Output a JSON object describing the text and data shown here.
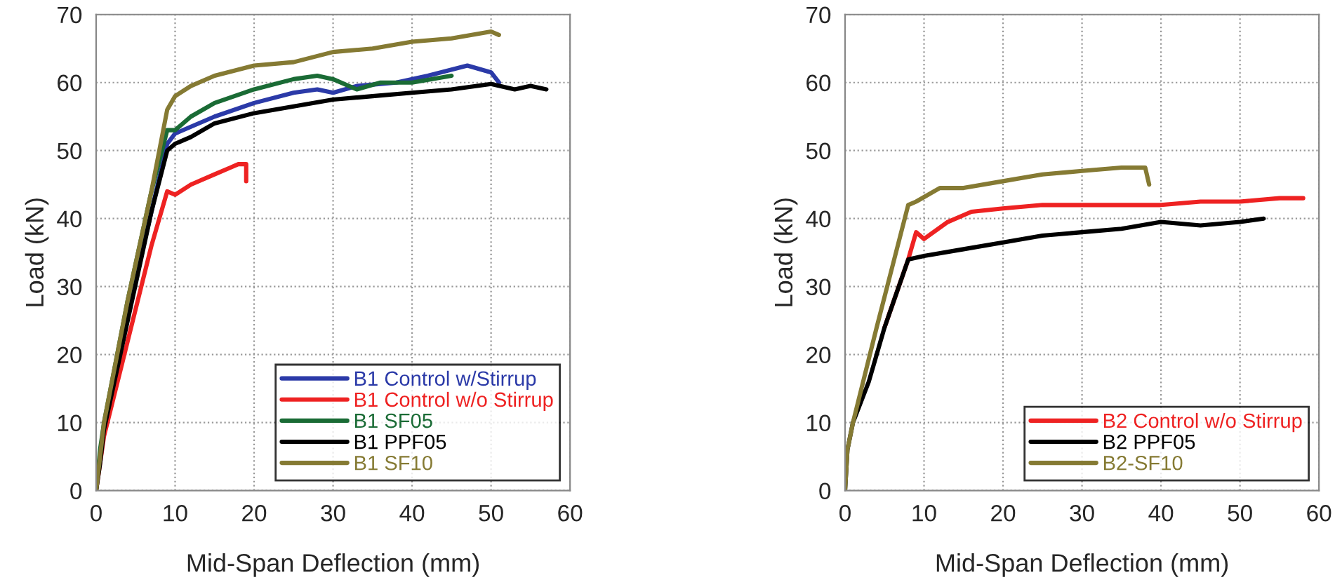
{
  "chart_data": [
    {
      "type": "line",
      "xlabel": "Mid-Span Deflection (mm)",
      "ylabel": "Load (kN)",
      "xlim": [
        0,
        60
      ],
      "ylim": [
        0,
        70
      ],
      "xticks": [
        0,
        10,
        20,
        30,
        40,
        50,
        60
      ],
      "yticks": [
        0,
        10,
        20,
        30,
        40,
        50,
        60,
        70
      ],
      "grid": true,
      "legend": "bottom right",
      "series": [
        {
          "name": "B1 Control w/Stirrup",
          "color": "#2b3aa8",
          "x": [
            3,
            6,
            9,
            10,
            12,
            15,
            20,
            25,
            28,
            30,
            33,
            38,
            42,
            47,
            50,
            51
          ],
          "values": [
            20,
            36,
            51,
            52.5,
            53.5,
            55,
            57,
            58.5,
            59,
            58.5,
            59.5,
            60,
            61,
            62.5,
            61.5,
            60
          ]
        },
        {
          "name": "B1 Control w/o Stirrup",
          "color": "#ee2222",
          "x": [
            0,
            0.5,
            1,
            4,
            7,
            9,
            10,
            12,
            15,
            17,
            18,
            19,
            19
          ],
          "values": [
            0,
            4,
            8,
            22,
            36,
            44,
            43.5,
            45,
            46.5,
            47.5,
            48,
            48,
            45.5
          ]
        },
        {
          "name": "B1 SF05",
          "color": "#1a6b35",
          "x": [
            0,
            0.5,
            1,
            4,
            7,
            9,
            10,
            12,
            15,
            20,
            25,
            28,
            30,
            33,
            36,
            40,
            45
          ],
          "values": [
            0,
            6,
            10,
            28,
            44,
            53,
            53,
            55,
            57,
            59,
            60.5,
            61,
            60.5,
            59,
            60,
            60,
            61
          ]
        },
        {
          "name": "B1 PPF05",
          "color": "#000000",
          "x": [
            0,
            0.5,
            1,
            4,
            7,
            9,
            10,
            12,
            15,
            20,
            25,
            30,
            35,
            40,
            45,
            50,
            53,
            55,
            57
          ],
          "values": [
            0,
            4,
            9,
            25,
            41,
            50,
            51,
            52,
            54,
            55.5,
            56.5,
            57.5,
            58,
            58.5,
            59,
            59.8,
            59,
            59.5,
            59
          ]
        },
        {
          "name": "B1 SF10",
          "color": "#857a33",
          "x": [
            0,
            1,
            4,
            7,
            9,
            10,
            12,
            15,
            20,
            25,
            30,
            35,
            40,
            45,
            50,
            51
          ],
          "values": [
            0,
            10,
            28,
            44,
            56,
            58,
            59.5,
            61,
            62.5,
            63,
            64.5,
            65,
            66,
            66.5,
            67.5,
            67
          ]
        }
      ]
    },
    {
      "type": "line",
      "xlabel": "Mid-Span Deflection (mm)",
      "ylabel": "Load (kN)",
      "xlim": [
        0,
        60
      ],
      "ylim": [
        0,
        70
      ],
      "xticks": [
        0,
        10,
        20,
        30,
        40,
        50,
        60
      ],
      "yticks": [
        0,
        10,
        20,
        30,
        40,
        50,
        60,
        70
      ],
      "grid": true,
      "legend": "bottom right",
      "series": [
        {
          "name": "B2 Control w/o Stirrup",
          "color": "#ee2222",
          "x": [
            5,
            8,
            9,
            10,
            13,
            16,
            20,
            25,
            30,
            35,
            40,
            45,
            50,
            55,
            58
          ],
          "values": [
            24,
            34,
            38,
            37,
            39.5,
            41,
            41.5,
            42,
            42,
            42,
            42,
            42.5,
            42.5,
            43,
            43
          ]
        },
        {
          "name": "B2 PPF05",
          "color": "#000000",
          "x": [
            0,
            0.3,
            1,
            3,
            5,
            8,
            10,
            15,
            20,
            25,
            30,
            35,
            40,
            45,
            50,
            53
          ],
          "values": [
            0,
            6,
            10,
            16,
            24,
            34,
            34.5,
            35.5,
            36.5,
            37.5,
            38,
            38.5,
            39.5,
            39,
            39.5,
            40
          ]
        },
        {
          "name": "B2-SF10",
          "color": "#857a33",
          "x": [
            0,
            0.3,
            1,
            4,
            8,
            9,
            12,
            15,
            20,
            25,
            30,
            35,
            38,
            38.5
          ],
          "values": [
            0,
            6,
            10,
            24,
            42,
            42.5,
            44.5,
            44.5,
            45.5,
            46.5,
            47,
            47.5,
            47.5,
            45
          ]
        }
      ]
    }
  ]
}
